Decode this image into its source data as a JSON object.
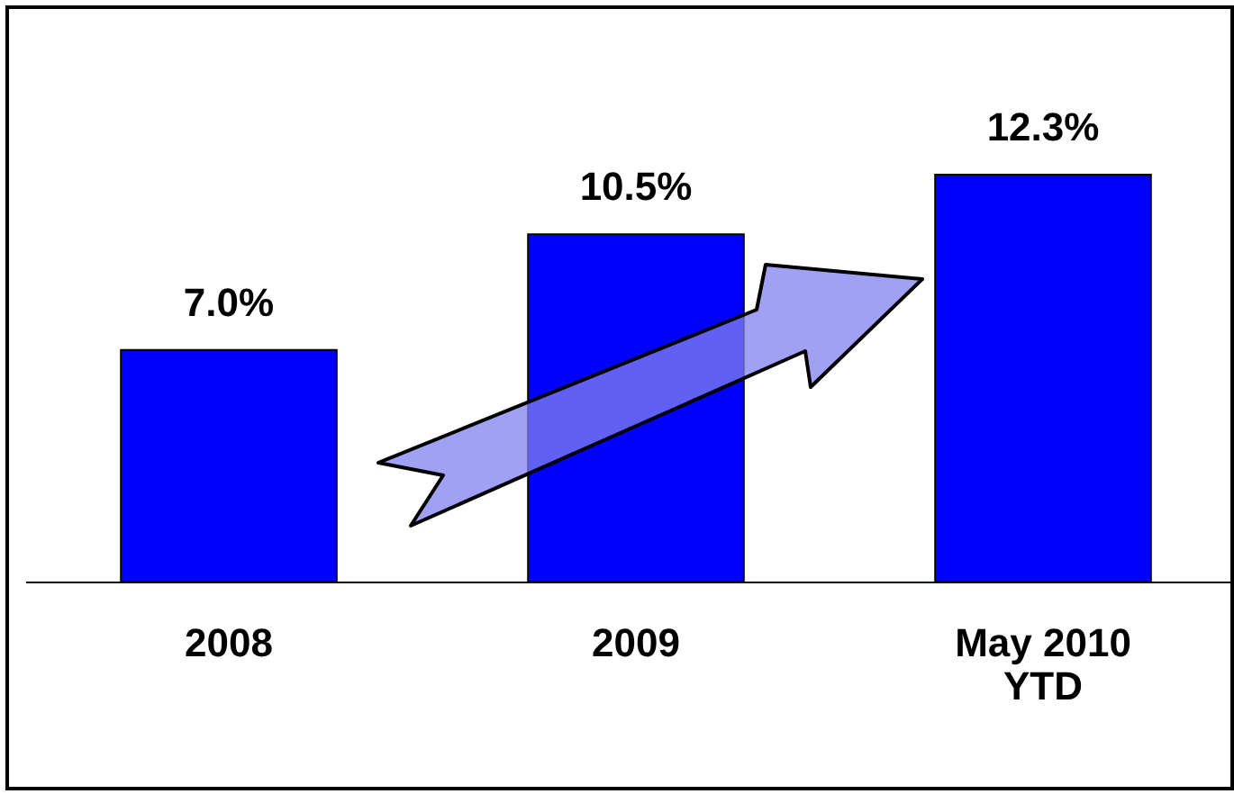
{
  "chart_data": {
    "type": "bar",
    "categories": [
      "2008",
      "2009",
      "May 2010 YTD"
    ],
    "values": [
      7.0,
      10.5,
      12.3
    ],
    "color": "#0000ff",
    "value_labels": [
      "7.0%",
      "10.5%",
      "12.3%"
    ],
    "tick_labels": "x",
    "grid": false
  }
}
